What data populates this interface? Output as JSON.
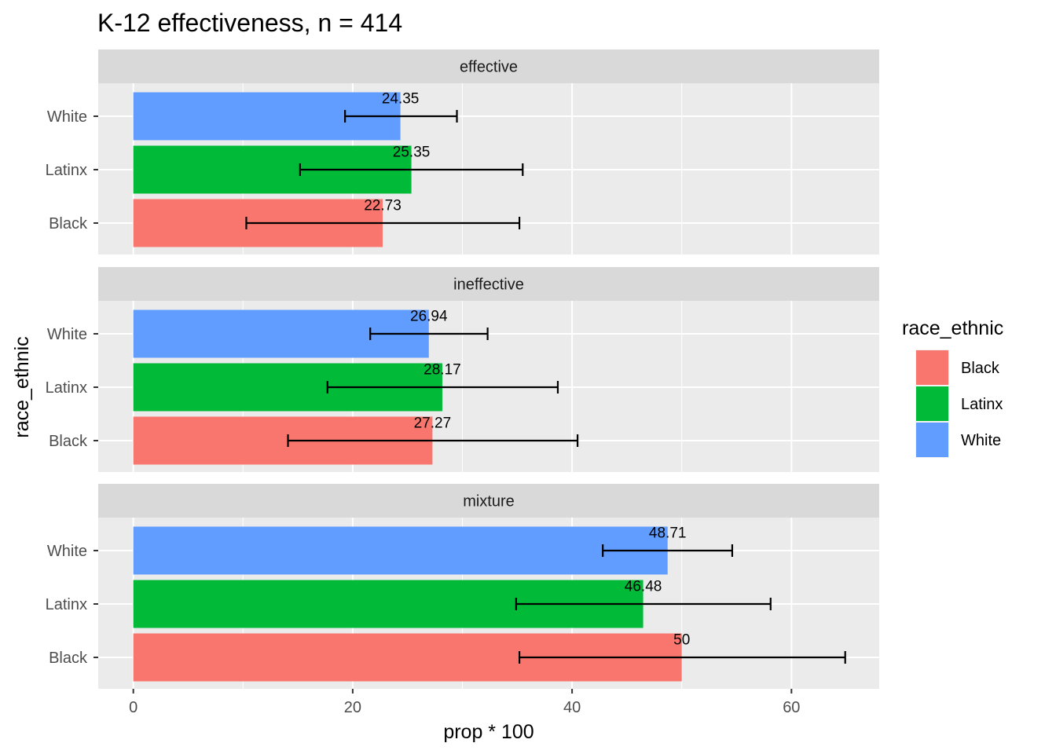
{
  "chart_data": {
    "type": "bar",
    "orientation": "horizontal",
    "title": "K-12 effectiveness, n = 414",
    "xlabel": "prop * 100",
    "ylabel": "race_ethnic",
    "xlim": [
      -3.2,
      68
    ],
    "x_ticks": [
      0,
      20,
      40,
      60
    ],
    "x_tick_labels": [
      "0",
      "20",
      "40",
      "60"
    ],
    "grid": true,
    "categories": [
      "White",
      "Latinx",
      "Black"
    ],
    "legend": {
      "title": "race_ethnic",
      "position": "right",
      "entries": [
        {
          "label": "Black",
          "color": "#F8766D"
        },
        {
          "label": "Latinx",
          "color": "#00BA38"
        },
        {
          "label": "White",
          "color": "#619CFF"
        }
      ]
    },
    "facets": [
      {
        "label": "effective",
        "bars": [
          {
            "category": "White",
            "value": 24.35,
            "label": "24.35",
            "err_low": 19.3,
            "err_high": 29.5,
            "color": "#619CFF"
          },
          {
            "category": "Latinx",
            "value": 25.35,
            "label": "25.35",
            "err_low": 15.2,
            "err_high": 35.5,
            "color": "#00BA38"
          },
          {
            "category": "Black",
            "value": 22.73,
            "label": "22.73",
            "err_low": 10.3,
            "err_high": 35.2,
            "color": "#F8766D"
          }
        ]
      },
      {
        "label": "ineffective",
        "bars": [
          {
            "category": "White",
            "value": 26.94,
            "label": "26.94",
            "err_low": 21.6,
            "err_high": 32.3,
            "color": "#619CFF"
          },
          {
            "category": "Latinx",
            "value": 28.17,
            "label": "28.17",
            "err_low": 17.7,
            "err_high": 38.7,
            "color": "#00BA38"
          },
          {
            "category": "Black",
            "value": 27.27,
            "label": "27.27",
            "err_low": 14.1,
            "err_high": 40.5,
            "color": "#F8766D"
          }
        ]
      },
      {
        "label": "mixture",
        "bars": [
          {
            "category": "White",
            "value": 48.71,
            "label": "48.71",
            "err_low": 42.8,
            "err_high": 54.6,
            "color": "#619CFF"
          },
          {
            "category": "Latinx",
            "value": 46.48,
            "label": "46.48",
            "err_low": 34.9,
            "err_high": 58.1,
            "color": "#00BA38"
          },
          {
            "category": "Black",
            "value": 50,
            "label": "50",
            "err_low": 35.2,
            "err_high": 64.9,
            "color": "#F8766D"
          }
        ]
      }
    ]
  }
}
